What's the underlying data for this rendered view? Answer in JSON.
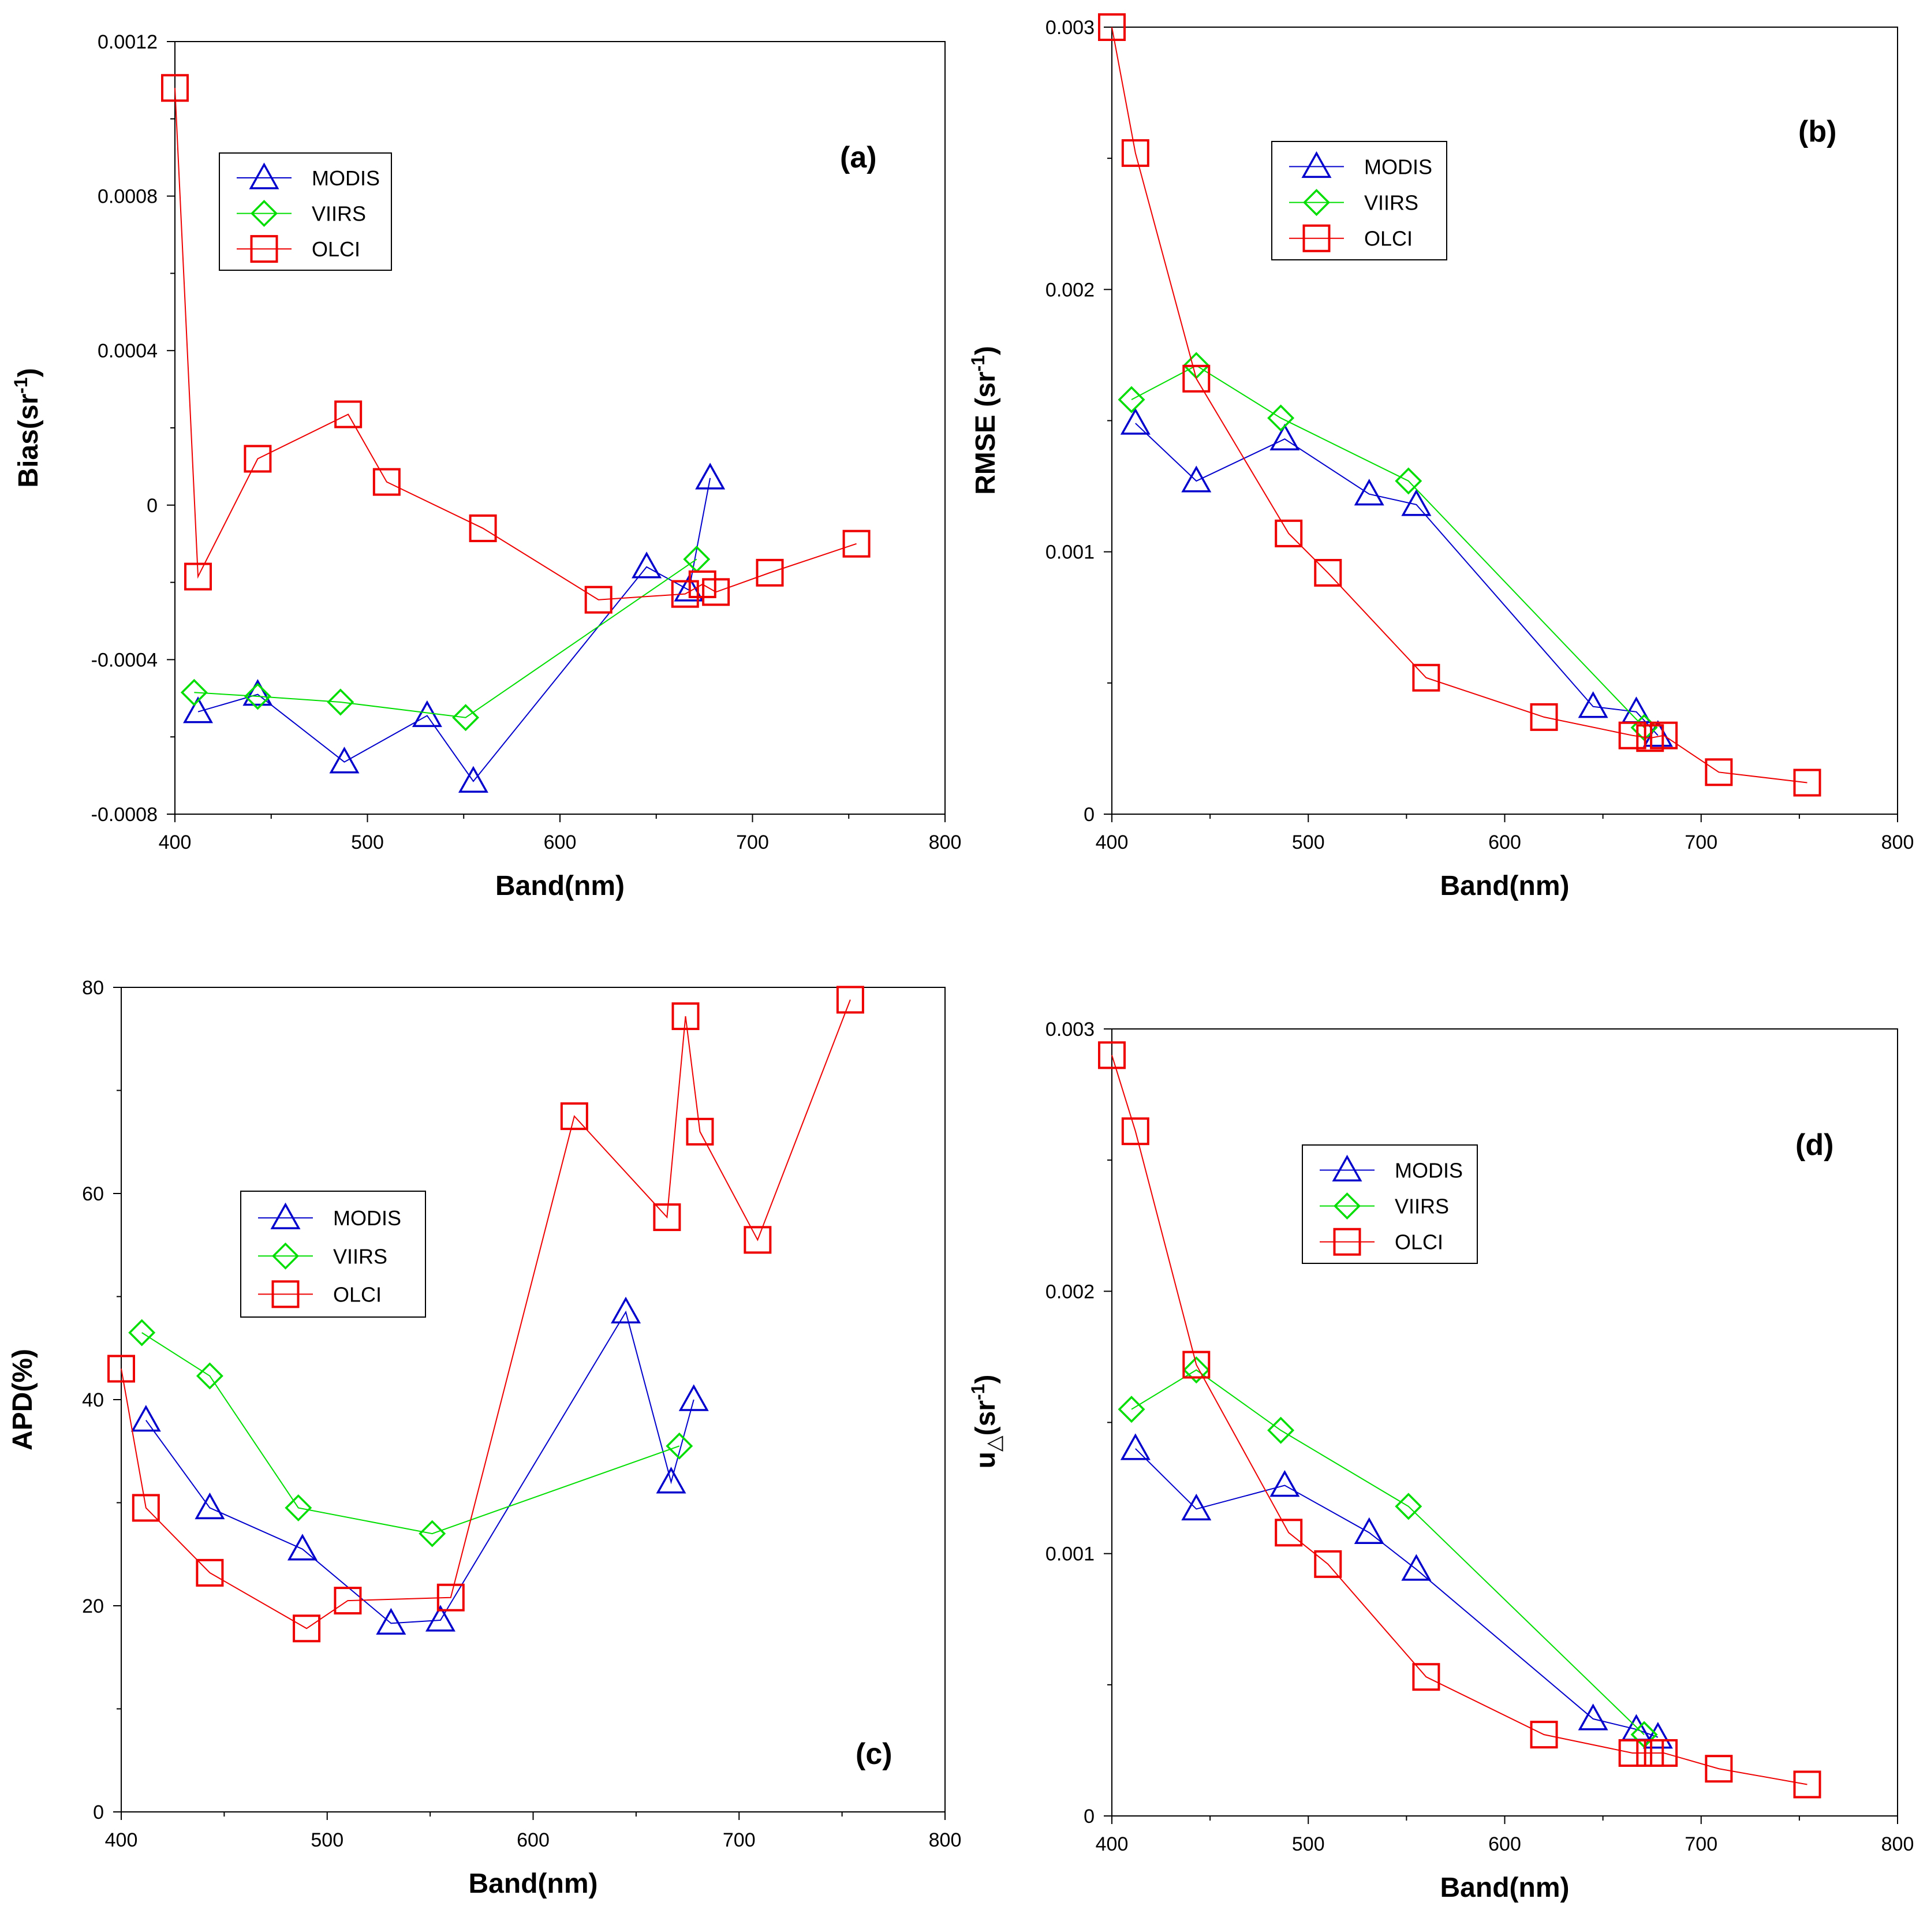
{
  "figure": {
    "colors": {
      "MODIS": "#0000cc",
      "VIIRS": "#00dd00",
      "OLCI": "#ee0000"
    },
    "marker_icons": {
      "MODIS": "triangle-icon",
      "VIIRS": "diamond-icon",
      "OLCI": "square-icon"
    }
  },
  "chart_data": [
    {
      "id": "a",
      "type": "line",
      "panel_label": "(a)",
      "xlabel": "Band(nm)",
      "ylabel": "Bias(sr",
      "ylabel_sup": "-1",
      "ylabel_tail": ")",
      "xlim": [
        400,
        800
      ],
      "ylim": [
        -0.0008,
        0.0012
      ],
      "xticks": [
        400,
        500,
        600,
        700,
        800
      ],
      "xtick_labels": [
        "400",
        "500",
        "600",
        "700",
        "800"
      ],
      "yticks": [
        -0.0008,
        -0.0004,
        0,
        0.0004,
        0.0008,
        0.0012
      ],
      "ytick_labels": [
        "-0.0008",
        "-0.0004",
        "0",
        "0.0004",
        "0.0008",
        "0.0012"
      ],
      "legend": {
        "entries": [
          "MODIS",
          "VIIRS",
          "OLCI"
        ],
        "position": "upper-left"
      },
      "series": [
        {
          "name": "MODIS",
          "marker": "triangle",
          "x": [
            412,
            443,
            488,
            531,
            555,
            645,
            667,
            678
          ],
          "y": [
            -0.000535,
            -0.00049,
            -0.000665,
            -0.000545,
            -0.000715,
            -0.00016,
            -0.00022,
            7e-05
          ]
        },
        {
          "name": "VIIRS",
          "marker": "diamond",
          "x": [
            410,
            443,
            486,
            551,
            671
          ],
          "y": [
            -0.000485,
            -0.000495,
            -0.00051,
            -0.00055,
            -0.00014
          ]
        },
        {
          "name": "OLCI",
          "marker": "square",
          "x": [
            400,
            412,
            443,
            490,
            510,
            560,
            620,
            665,
            674,
            681,
            709,
            754
          ],
          "y": [
            0.00108,
            -0.000185,
            0.00012,
            0.000235,
            6e-05,
            -6e-05,
            -0.000245,
            -0.00023,
            -0.000205,
            -0.000225,
            -0.000175,
            -0.0001
          ]
        }
      ]
    },
    {
      "id": "b",
      "type": "line",
      "panel_label": "(b)",
      "xlabel": "Band(nm)",
      "ylabel": "RMSE (sr",
      "ylabel_sup": "-1",
      "ylabel_tail": ")",
      "xlim": [
        400,
        800
      ],
      "ylim": [
        0,
        0.003
      ],
      "xticks": [
        400,
        500,
        600,
        700,
        800
      ],
      "xtick_labels": [
        "400",
        "500",
        "600",
        "700",
        "800"
      ],
      "yticks": [
        0,
        0.001,
        0.002,
        0.003
      ],
      "ytick_labels": [
        "0",
        "0.001",
        "0.002",
        "0.003"
      ],
      "legend": {
        "entries": [
          "MODIS",
          "VIIRS",
          "OLCI"
        ],
        "position": "upper-center"
      },
      "series": [
        {
          "name": "MODIS",
          "marker": "triangle",
          "x": [
            412,
            443,
            488,
            531,
            555,
            645,
            667,
            678
          ],
          "y": [
            0.00149,
            0.00127,
            0.00143,
            0.00122,
            0.00118,
            0.00041,
            0.00039,
            0.0003
          ]
        },
        {
          "name": "VIIRS",
          "marker": "diamond",
          "x": [
            410,
            443,
            486,
            551,
            671
          ],
          "y": [
            0.00158,
            0.00171,
            0.00151,
            0.00127,
            0.00033
          ]
        },
        {
          "name": "OLCI",
          "marker": "square",
          "x": [
            400,
            412,
            443,
            490,
            510,
            560,
            620,
            665,
            674,
            681,
            709,
            754
          ],
          "y": [
            0.003,
            0.00252,
            0.00166,
            0.00107,
            0.00092,
            0.00052,
            0.00037,
            0.0003,
            0.00029,
            0.0003,
            0.00016,
            0.00012
          ]
        }
      ]
    },
    {
      "id": "c",
      "type": "line",
      "panel_label": "(c)",
      "xlabel": "Band(nm)",
      "ylabel": "APD(%)",
      "ylabel_sup": "",
      "ylabel_tail": "",
      "xlim": [
        400,
        800
      ],
      "ylim": [
        0,
        80
      ],
      "xticks": [
        400,
        500,
        600,
        700,
        800
      ],
      "xtick_labels": [
        "400",
        "500",
        "600",
        "700",
        "800"
      ],
      "yticks": [
        0,
        20,
        40,
        60,
        80
      ],
      "ytick_labels": [
        "0",
        "20",
        "40",
        "60",
        "80"
      ],
      "legend": {
        "entries": [
          "MODIS",
          "VIIRS",
          "OLCI"
        ],
        "position": "upper-left"
      },
      "series": [
        {
          "name": "MODIS",
          "marker": "triangle",
          "x": [
            412,
            443,
            488,
            531,
            555,
            645,
            667,
            678
          ],
          "y": [
            38.0,
            29.5,
            25.5,
            18.3,
            18.6,
            48.5,
            32.0,
            40.0
          ]
        },
        {
          "name": "VIIRS",
          "marker": "diamond",
          "x": [
            410,
            443,
            486,
            551,
            671
          ],
          "y": [
            46.5,
            42.3,
            29.5,
            27.0,
            35.5
          ]
        },
        {
          "name": "OLCI",
          "marker": "square",
          "x": [
            400,
            412,
            443,
            490,
            510,
            560,
            620,
            665,
            674,
            681,
            709,
            754
          ],
          "y": [
            43.0,
            29.5,
            23.2,
            17.8,
            20.5,
            20.8,
            67.5,
            57.7,
            77.2,
            66.0,
            55.5,
            78.8
          ]
        }
      ]
    },
    {
      "id": "d",
      "type": "line",
      "panel_label": "(d)",
      "xlabel": "Band(nm)",
      "ylabel": "u",
      "ylabel_sub": "△",
      "ylabel_mid": "(sr",
      "ylabel_sup": "-1",
      "ylabel_tail": ")",
      "xlim": [
        400,
        800
      ],
      "ylim": [
        0,
        0.003
      ],
      "xticks": [
        400,
        500,
        600,
        700,
        800
      ],
      "xtick_labels": [
        "400",
        "500",
        "600",
        "700",
        "800"
      ],
      "yticks": [
        0,
        0.001,
        0.002,
        0.003
      ],
      "ytick_labels": [
        "0",
        "0.001",
        "0.002",
        "0.003"
      ],
      "legend": {
        "entries": [
          "MODIS",
          "VIIRS",
          "OLCI"
        ],
        "position": "upper-center"
      },
      "series": [
        {
          "name": "MODIS",
          "marker": "triangle",
          "x": [
            412,
            443,
            488,
            531,
            555,
            645,
            667,
            678
          ],
          "y": [
            0.0014,
            0.00117,
            0.00126,
            0.00108,
            0.00094,
            0.00037,
            0.00033,
            0.0003
          ]
        },
        {
          "name": "VIIRS",
          "marker": "diamond",
          "x": [
            410,
            443,
            486,
            551,
            671
          ],
          "y": [
            0.00155,
            0.0017,
            0.00147,
            0.00118,
            0.00031
          ]
        },
        {
          "name": "OLCI",
          "marker": "square",
          "x": [
            400,
            412,
            443,
            490,
            510,
            560,
            620,
            665,
            674,
            681,
            709,
            754
          ],
          "y": [
            0.0029,
            0.00261,
            0.00172,
            0.00108,
            0.00096,
            0.00053,
            0.00031,
            0.00024,
            0.00024,
            0.00024,
            0.00018,
            0.00012
          ]
        }
      ]
    }
  ]
}
